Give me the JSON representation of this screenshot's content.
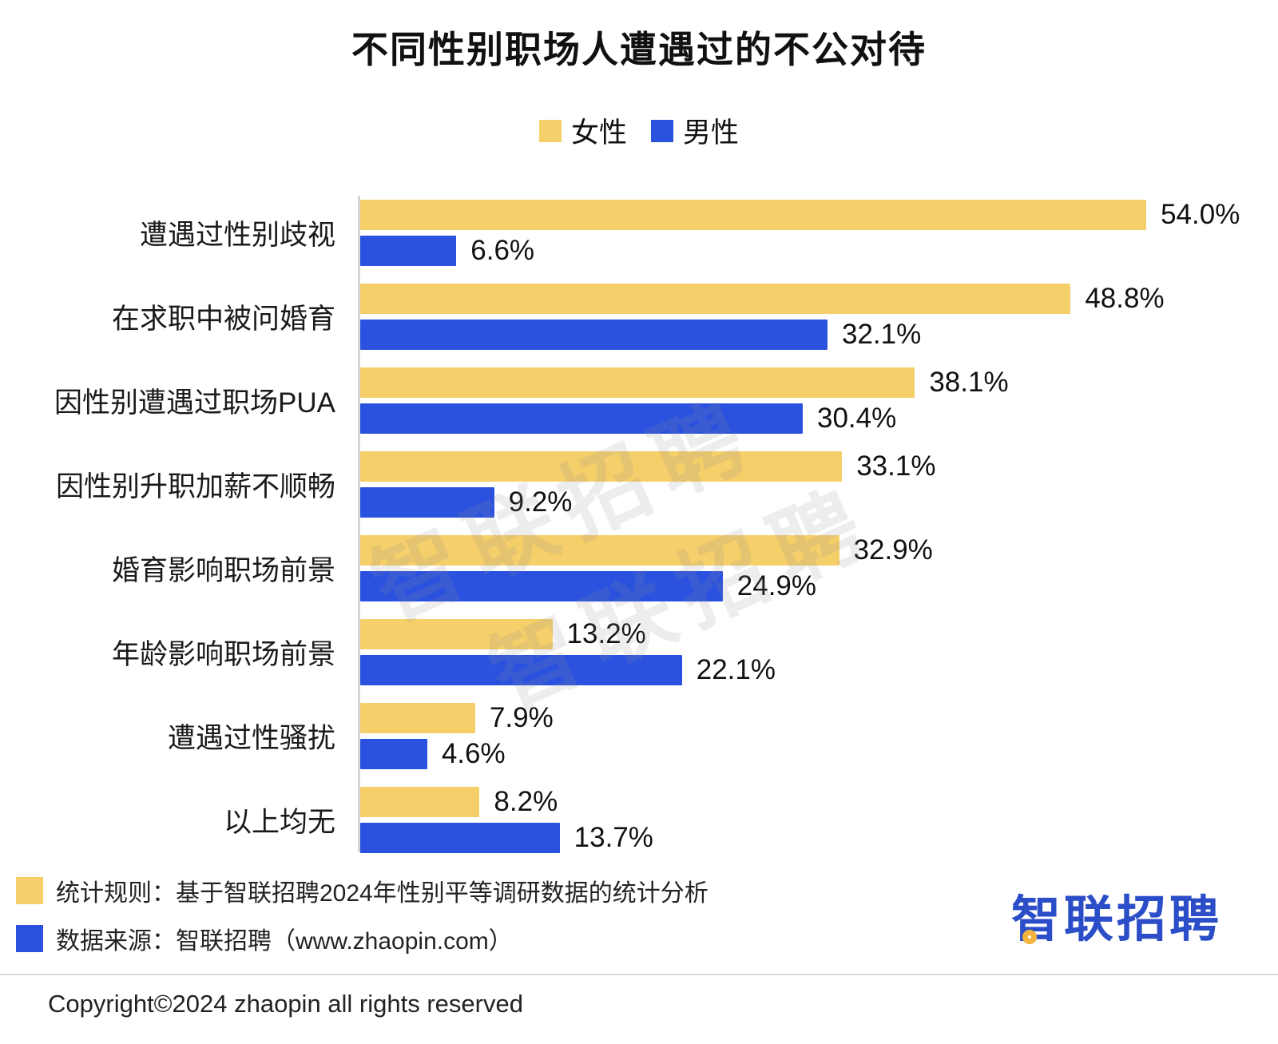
{
  "title": "不同性别职场人遭遇过的不公对待",
  "legend": [
    {
      "label": "女性",
      "color": "#f5cf6a"
    },
    {
      "label": "男性",
      "color": "#2a52de"
    }
  ],
  "watermark": "智联招聘",
  "chart_data": {
    "type": "bar",
    "orientation": "horizontal",
    "categories": [
      "遭遇过性别歧视",
      "在求职中被问婚育",
      "因性别遭遇过职场PUA",
      "因性别升职加薪不顺畅",
      "婚育影响职场前景",
      "年龄影响职场前景",
      "遭遇过性骚扰",
      "以上均无"
    ],
    "series": [
      {
        "name": "女性",
        "key": "female",
        "color": "#f5cf6a",
        "values": [
          54.0,
          48.8,
          38.1,
          33.1,
          32.9,
          13.2,
          7.9,
          8.2
        ]
      },
      {
        "name": "男性",
        "key": "male",
        "color": "#2a52de",
        "values": [
          6.6,
          32.1,
          30.4,
          9.2,
          24.9,
          22.1,
          4.6,
          13.7
        ]
      }
    ],
    "value_suffix": "%",
    "xlim": [
      0,
      62.5
    ],
    "grid": false,
    "legend_position": "top"
  },
  "footer": {
    "note1": "统计规则：基于智联招聘2024年性别平等调研数据的统计分析",
    "note2": "数据来源：智联招聘（www.zhaopin.com）",
    "logo": "智联招聘",
    "copyright": "Copyright©2024 zhaopin all rights reserved"
  }
}
